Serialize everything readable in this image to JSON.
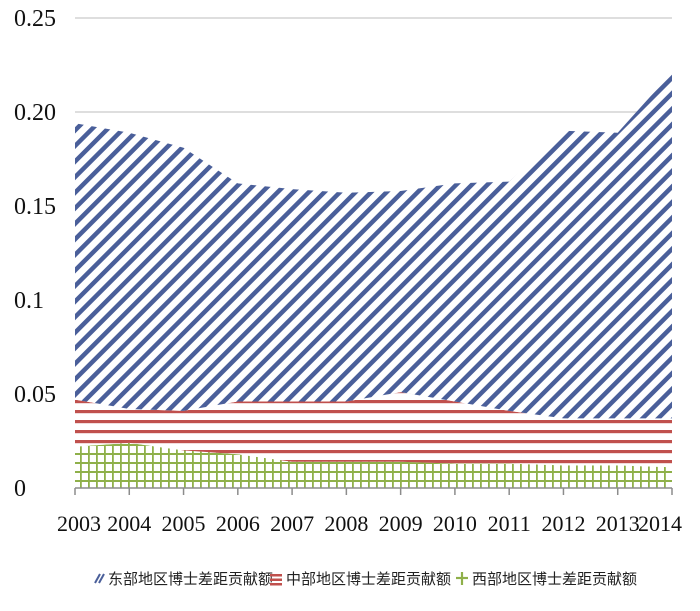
{
  "chart_data": {
    "type": "area",
    "stacked": true,
    "x": [
      "2003",
      "2004",
      "2005",
      "2006",
      "2007",
      "2008",
      "2009",
      "2010",
      "2011",
      "2012",
      "2013",
      "2014"
    ],
    "series": [
      {
        "name": "西部地区博士差距贡献额",
        "values": [
          0.022,
          0.024,
          0.02,
          0.018,
          0.014,
          0.014,
          0.014,
          0.013,
          0.013,
          0.012,
          0.012,
          0.011
        ],
        "color": "#8fb04a",
        "pattern": "plus-grid"
      },
      {
        "name": "中部地区博士差距贡献额",
        "values": [
          0.025,
          0.018,
          0.021,
          0.028,
          0.032,
          0.032,
          0.037,
          0.033,
          0.028,
          0.025,
          0.025,
          0.026
        ],
        "color": "#c0504d",
        "pattern": "horizontal-stripes"
      },
      {
        "name": "东部地区博士差距贡献额",
        "values": [
          0.147,
          0.147,
          0.14,
          0.116,
          0.113,
          0.111,
          0.107,
          0.116,
          0.122,
          0.153,
          0.152,
          0.184
        ],
        "color": "#4a5f9a",
        "pattern": "diagonal-stripes"
      }
    ],
    "y_ticks": [
      "0",
      "0.05",
      "0.1",
      "0.15",
      "0.20",
      "0.25"
    ],
    "ylim": [
      0,
      0.25
    ],
    "grid": true,
    "legend_position": "bottom"
  },
  "legend": {
    "items": [
      {
        "label": "东部地区博士差距贡献额",
        "icon": "diagonal-stripes-icon",
        "color": "#4a5f9a"
      },
      {
        "label": "中部地区博士差距贡献额",
        "icon": "horizontal-stripes-icon",
        "color": "#c0504d"
      },
      {
        "label": "西部地区博士差距贡献额",
        "icon": "plus-icon",
        "color": "#8fb04a"
      }
    ]
  }
}
